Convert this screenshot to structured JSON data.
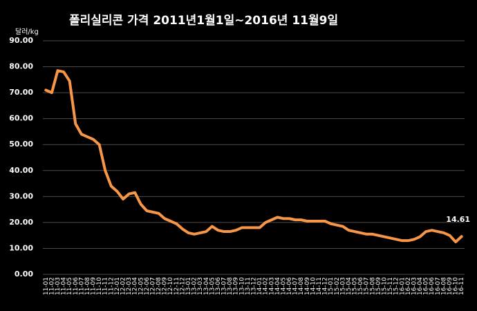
{
  "chart_data": {
    "type": "line",
    "title": "폴리실리콘 가격    2011년1월1일~2016년 11월9일",
    "y_label": "달러/kg",
    "categories": [
      "11-01",
      "11-02",
      "11-03",
      "11-04",
      "11-05",
      "11-06",
      "11-07",
      "11-08",
      "11-09",
      "11-10",
      "11-11",
      "11-12",
      "12-01",
      "12-02",
      "12-03",
      "12-04",
      "12-05",
      "12-06",
      "12-07",
      "12-08",
      "12-09",
      "12-10",
      "12-11",
      "12-12",
      "13-01",
      "13-02",
      "13-03",
      "13-04",
      "13-05",
      "13-06",
      "13-07",
      "13-08",
      "13-09",
      "13-10",
      "13-11",
      "13-12",
      "14-01",
      "14-02",
      "14-03",
      "14-04",
      "14-05",
      "14-06",
      "14-07",
      "14-08",
      "14-09",
      "14-10",
      "14-11",
      "14-12",
      "15-01",
      "15-02",
      "15-03",
      "15-04",
      "15-05",
      "15-06",
      "15-07",
      "15-08",
      "15-09",
      "15-10",
      "15-11",
      "15-12",
      "16-01",
      "16-02",
      "16-03",
      "16-04",
      "16-05",
      "16-06",
      "16-07",
      "16-08",
      "16-09",
      "16-10",
      "16-11"
    ],
    "values": [
      71,
      70,
      78.5,
      78,
      74.5,
      58,
      54,
      53,
      52,
      50,
      40,
      34,
      32,
      29,
      31,
      31.5,
      27,
      24.5,
      24,
      23.5,
      21.5,
      20.5,
      19.5,
      17.5,
      16,
      15.5,
      16,
      16.5,
      18.5,
      17,
      16.5,
      16.5,
      17,
      18,
      18,
      18,
      18,
      20,
      21,
      22,
      21.5,
      21.5,
      21,
      21,
      20.5,
      20.5,
      20.5,
      20.5,
      19.5,
      19,
      18.5,
      17,
      16.5,
      16,
      15.5,
      15.5,
      15,
      14.5,
      14,
      13.5,
      13,
      13,
      13.5,
      14.5,
      16.5,
      17,
      16.5,
      16,
      15,
      12.5,
      14.61
    ],
    "color": "#f79646",
    "ylim": [
      0,
      90
    ],
    "yticks": [
      {
        "value": 0,
        "label": "0.00"
      },
      {
        "value": 10,
        "label": "10.00"
      },
      {
        "value": 20,
        "label": "20.00"
      },
      {
        "value": 30,
        "label": "30.00"
      },
      {
        "value": 40,
        "label": "40.00"
      },
      {
        "value": 50,
        "label": "50.00"
      },
      {
        "value": 60,
        "label": "60.00"
      },
      {
        "value": 70,
        "label": "70.00"
      },
      {
        "value": 80,
        "label": "80.00"
      },
      {
        "value": 90,
        "label": "90.00"
      }
    ],
    "grid": true
  }
}
